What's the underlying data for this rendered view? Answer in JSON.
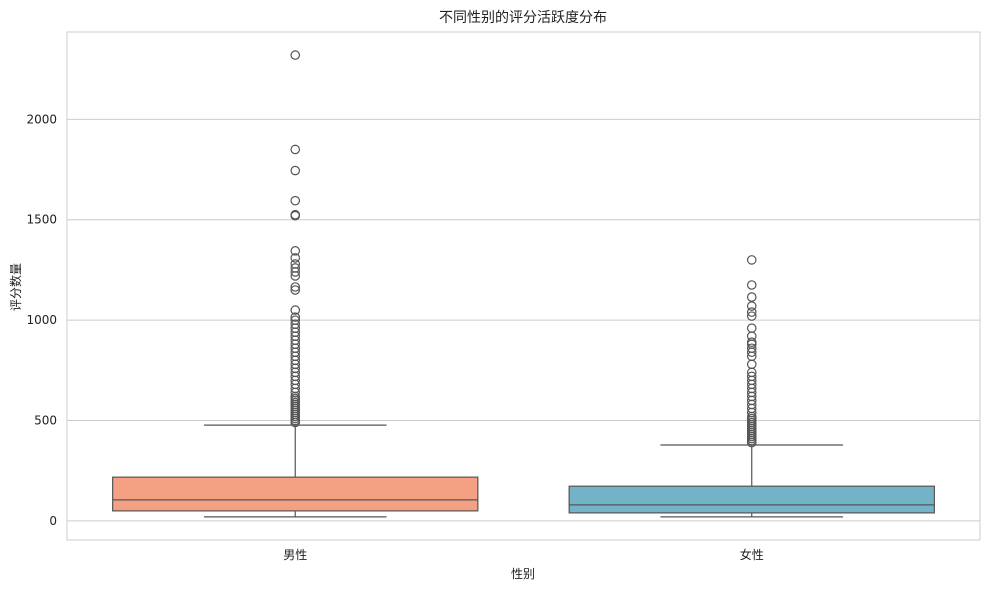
{
  "chart_data": {
    "type": "box",
    "title": "不同性别的评分活跃度分布",
    "xlabel": "性别",
    "ylabel": "评分数量",
    "ylim": [
      -95,
      2435
    ],
    "yticks": [
      0,
      500,
      1000,
      1500,
      2000
    ],
    "grid": "horizontal",
    "categories": [
      "男性",
      "女性"
    ],
    "colors": [
      "#f4a083",
      "#72b3c7"
    ],
    "boxes": [
      {
        "name": "男性",
        "whisker_low": 20,
        "q1": 50,
        "median": 105,
        "q3": 218,
        "whisker_high": 477,
        "outliers": [
          490,
          500,
          510,
          520,
          530,
          540,
          550,
          560,
          570,
          580,
          590,
          600,
          610,
          620,
          640,
          660,
          680,
          700,
          720,
          740,
          760,
          780,
          800,
          820,
          840,
          860,
          880,
          900,
          920,
          940,
          960,
          980,
          1000,
          1015,
          1050,
          1150,
          1165,
          1220,
          1240,
          1260,
          1280,
          1310,
          1345,
          1520,
          1525,
          1595,
          1745,
          1850,
          2320
        ]
      },
      {
        "name": "女性",
        "whisker_low": 20,
        "q1": 40,
        "median": 80,
        "q3": 173,
        "whisker_high": 378,
        "outliers": [
          390,
          400,
          410,
          420,
          430,
          440,
          450,
          460,
          470,
          480,
          490,
          500,
          510,
          520,
          540,
          560,
          580,
          600,
          620,
          640,
          660,
          680,
          700,
          720,
          740,
          780,
          820,
          840,
          860,
          880,
          890,
          920,
          960,
          1020,
          1040,
          1070,
          1115,
          1175,
          1300
        ]
      }
    ]
  }
}
